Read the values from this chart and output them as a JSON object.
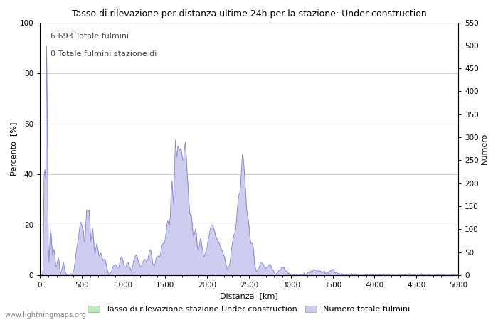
{
  "title": "Tasso di rilevazione per distanza ultime 24h per la stazione: Under construction",
  "xlabel": "Distanza  [km]",
  "ylabel_left": "Percento  [%]",
  "ylabel_right": "Numero",
  "annotation_line1": "6.693 Totale fulmini",
  "annotation_line2": "0 Totale fulmini stazione di",
  "xlim": [
    0,
    5000
  ],
  "ylim_left": [
    0,
    100
  ],
  "ylim_right": [
    0,
    550
  ],
  "xticks": [
    0,
    500,
    1000,
    1500,
    2000,
    2500,
    3000,
    3500,
    4000,
    4500,
    5000
  ],
  "yticks_left": [
    0,
    20,
    40,
    60,
    80,
    100
  ],
  "yticks_right": [
    0,
    50,
    100,
    150,
    200,
    250,
    300,
    350,
    400,
    450,
    500,
    550
  ],
  "legend_label_green": "Tasso di rilevazione stazione Under construction",
  "legend_label_blue": "Numero totale fulmini",
  "watermark": "www.lightningmaps.org",
  "line_color": "#8888cc",
  "fill_color_blue": "#ccccee",
  "fill_color_green": "#bbeebb",
  "background_color": "#ffffff",
  "grid_color": "#cccccc"
}
